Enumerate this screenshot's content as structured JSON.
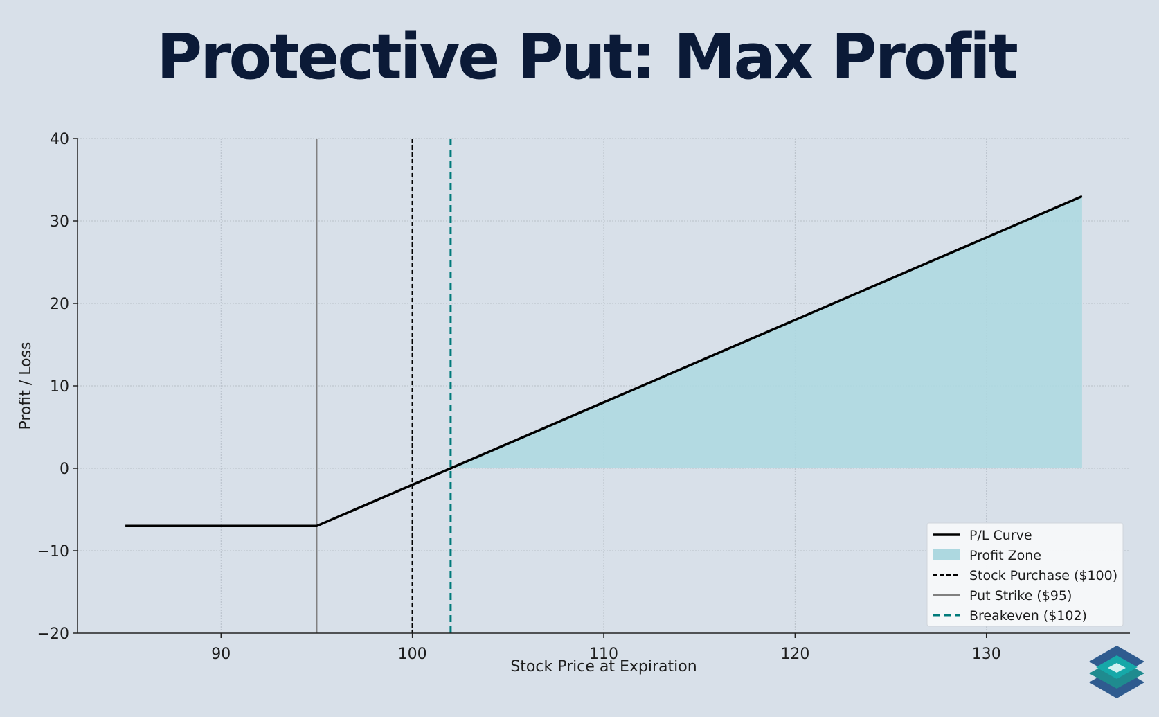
{
  "title": "Protective Put: Max Profit",
  "chart_data": {
    "type": "line",
    "xlabel": "Stock Price at Expiration",
    "ylabel": "Profit / Loss",
    "xlim": [
      82.5,
      137.5
    ],
    "ylim": [
      -20,
      40
    ],
    "xticks": [
      90,
      100,
      110,
      120,
      130
    ],
    "yticks": [
      -20,
      -10,
      0,
      10,
      20,
      30,
      40
    ],
    "ytick_labels": [
      "−20",
      "−10",
      "0",
      "10",
      "20",
      "30",
      "40"
    ],
    "grid": true,
    "legend_position": "lower-right",
    "series": [
      {
        "name": "P/L Curve",
        "x": [
          85,
          95,
          102,
          135
        ],
        "y": [
          -7,
          -7,
          0,
          33
        ],
        "color": "#000000"
      }
    ],
    "fill": {
      "name": "Profit Zone",
      "x": [
        102,
        135
      ],
      "y_top": [
        0,
        33
      ],
      "y_bottom": 0,
      "color": "#add8e0"
    },
    "vlines": [
      {
        "name": "Stock Purchase ($100)",
        "x": 100,
        "color": "#000000",
        "style": "dashed-fine"
      },
      {
        "name": "Put Strike ($95)",
        "x": 95,
        "color": "#808080",
        "style": "solid"
      },
      {
        "name": "Breakeven ($102)",
        "x": 102,
        "color": "#007a7a",
        "style": "dashed"
      }
    ]
  },
  "colors": {
    "background": "#d8e0e9",
    "title": "#0b1a37",
    "accent": "#007a7a"
  },
  "logo": {
    "icon": "layered-diamonds-icon",
    "colors": [
      "#2f5b8f",
      "#16a8a8",
      "#d0f0f0"
    ]
  }
}
